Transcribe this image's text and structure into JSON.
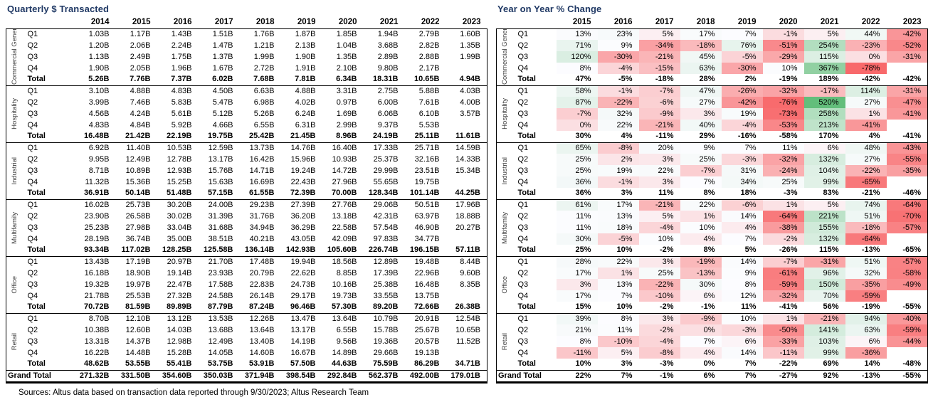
{
  "footer": "Sources: Altus data based on transaction data reported through 9/30/2023; Altus Research Team",
  "colors": {
    "title": "#1F3864",
    "heat_positive": "#63BE7B",
    "heat_negative": "#F8696B",
    "heat_neutral": "#FCFCFF"
  },
  "left_table": {
    "title": "Quarterly $ Transacted",
    "years": [
      "2014",
      "2015",
      "2016",
      "2017",
      "2018",
      "2019",
      "2020",
      "2021",
      "2022",
      "2023"
    ],
    "grand_total_label": "Grand Total",
    "groups": [
      {
        "name": "Commercial General/Misc.",
        "rows": [
          {
            "label": "Q1",
            "values": [
              "1.03B",
              "1.17B",
              "1.43B",
              "1.51B",
              "1.76B",
              "1.87B",
              "1.85B",
              "1.94B",
              "2.79B",
              "1.60B"
            ]
          },
          {
            "label": "Q2",
            "values": [
              "1.20B",
              "2.06B",
              "2.24B",
              "1.47B",
              "1.21B",
              "2.13B",
              "1.04B",
              "3.68B",
              "2.82B",
              "1.35B"
            ]
          },
          {
            "label": "Q3",
            "values": [
              "1.13B",
              "2.49B",
              "1.75B",
              "1.37B",
              "1.99B",
              "1.90B",
              "1.35B",
              "2.89B",
              "2.88B",
              "1.99B"
            ]
          },
          {
            "label": "Q4",
            "values": [
              "1.90B",
              "2.05B",
              "1.96B",
              "1.67B",
              "2.72B",
              "1.91B",
              "2.10B",
              "9.80B",
              "2.17B",
              null
            ]
          },
          {
            "label": "Total",
            "values": [
              "5.26B",
              "7.76B",
              "7.37B",
              "6.02B",
              "7.68B",
              "7.81B",
              "6.34B",
              "18.31B",
              "10.65B",
              "4.94B"
            ]
          }
        ]
      },
      {
        "name": "Hospitality",
        "rows": [
          {
            "label": "Q1",
            "values": [
              "3.10B",
              "4.88B",
              "4.83B",
              "4.50B",
              "6.63B",
              "4.88B",
              "3.31B",
              "2.75B",
              "5.88B",
              "4.03B"
            ]
          },
          {
            "label": "Q2",
            "values": [
              "3.99B",
              "7.46B",
              "5.83B",
              "5.47B",
              "6.98B",
              "4.02B",
              "0.97B",
              "6.00B",
              "7.61B",
              "4.00B"
            ]
          },
          {
            "label": "Q3",
            "values": [
              "4.56B",
              "4.24B",
              "5.61B",
              "5.12B",
              "5.26B",
              "6.24B",
              "1.69B",
              "6.06B",
              "6.10B",
              "3.57B"
            ]
          },
          {
            "label": "Q4",
            "values": [
              "4.83B",
              "4.84B",
              "5.92B",
              "4.66B",
              "6.55B",
              "6.31B",
              "2.99B",
              "9.37B",
              "5.53B",
              null
            ]
          },
          {
            "label": "Total",
            "values": [
              "16.48B",
              "21.42B",
              "22.19B",
              "19.75B",
              "25.42B",
              "21.45B",
              "8.96B",
              "24.19B",
              "25.11B",
              "11.61B"
            ]
          }
        ]
      },
      {
        "name": "Industrial",
        "rows": [
          {
            "label": "Q1",
            "values": [
              "6.92B",
              "11.40B",
              "10.53B",
              "12.59B",
              "13.73B",
              "14.76B",
              "16.40B",
              "17.33B",
              "25.71B",
              "14.59B"
            ]
          },
          {
            "label": "Q2",
            "values": [
              "9.95B",
              "12.49B",
              "12.78B",
              "13.17B",
              "16.42B",
              "15.96B",
              "10.93B",
              "25.37B",
              "32.16B",
              "14.33B"
            ]
          },
          {
            "label": "Q3",
            "values": [
              "8.71B",
              "10.89B",
              "12.93B",
              "15.76B",
              "14.71B",
              "19.24B",
              "14.72B",
              "29.99B",
              "23.51B",
              "15.34B"
            ]
          },
          {
            "label": "Q4",
            "values": [
              "11.32B",
              "15.36B",
              "15.25B",
              "15.63B",
              "16.69B",
              "22.43B",
              "27.96B",
              "55.65B",
              "19.75B",
              null
            ]
          },
          {
            "label": "Total",
            "values": [
              "36.91B",
              "50.14B",
              "51.48B",
              "57.15B",
              "61.55B",
              "72.39B",
              "70.00B",
              "128.34B",
              "101.14B",
              "44.25B"
            ]
          }
        ]
      },
      {
        "name": "Multifamily",
        "rows": [
          {
            "label": "Q1",
            "values": [
              "16.02B",
              "25.73B",
              "30.20B",
              "24.00B",
              "29.23B",
              "27.39B",
              "27.76B",
              "29.06B",
              "50.51B",
              "17.96B"
            ]
          },
          {
            "label": "Q2",
            "values": [
              "23.90B",
              "26.58B",
              "30.02B",
              "31.39B",
              "31.76B",
              "36.20B",
              "13.18B",
              "42.31B",
              "63.97B",
              "18.88B"
            ]
          },
          {
            "label": "Q3",
            "values": [
              "25.23B",
              "27.98B",
              "33.04B",
              "31.68B",
              "34.94B",
              "36.29B",
              "22.58B",
              "57.54B",
              "46.90B",
              "20.27B"
            ]
          },
          {
            "label": "Q4",
            "values": [
              "28.19B",
              "36.74B",
              "35.00B",
              "38.51B",
              "40.21B",
              "43.05B",
              "42.09B",
              "97.83B",
              "34.77B",
              null
            ]
          },
          {
            "label": "Total",
            "values": [
              "93.34B",
              "117.02B",
              "128.25B",
              "125.58B",
              "136.14B",
              "142.93B",
              "105.60B",
              "226.74B",
              "196.15B",
              "57.11B"
            ]
          }
        ]
      },
      {
        "name": "Office",
        "rows": [
          {
            "label": "Q1",
            "values": [
              "13.43B",
              "17.19B",
              "20.97B",
              "21.70B",
              "17.48B",
              "19.94B",
              "18.56B",
              "12.89B",
              "19.48B",
              "8.44B"
            ]
          },
          {
            "label": "Q2",
            "values": [
              "16.18B",
              "18.90B",
              "19.14B",
              "23.93B",
              "20.79B",
              "22.62B",
              "8.85B",
              "17.39B",
              "22.96B",
              "9.60B"
            ]
          },
          {
            "label": "Q3",
            "values": [
              "19.32B",
              "19.97B",
              "22.47B",
              "17.58B",
              "22.83B",
              "24.73B",
              "10.16B",
              "25.38B",
              "16.48B",
              "8.35B"
            ]
          },
          {
            "label": "Q4",
            "values": [
              "21.78B",
              "25.53B",
              "27.32B",
              "24.58B",
              "26.14B",
              "29.17B",
              "19.73B",
              "33.55B",
              "13.75B",
              null
            ]
          },
          {
            "label": "Total",
            "values": [
              "70.72B",
              "81.59B",
              "89.89B",
              "87.79B",
              "87.24B",
              "96.46B",
              "57.30B",
              "89.20B",
              "72.66B",
              "26.38B"
            ]
          }
        ]
      },
      {
        "name": "Retail",
        "rows": [
          {
            "label": "Q1",
            "values": [
              "8.70B",
              "12.10B",
              "13.12B",
              "13.53B",
              "12.26B",
              "13.47B",
              "13.64B",
              "10.79B",
              "20.91B",
              "12.54B"
            ]
          },
          {
            "label": "Q2",
            "values": [
              "10.38B",
              "12.60B",
              "14.03B",
              "13.68B",
              "13.64B",
              "13.17B",
              "6.55B",
              "15.78B",
              "25.67B",
              "10.65B"
            ]
          },
          {
            "label": "Q3",
            "values": [
              "13.31B",
              "14.37B",
              "12.98B",
              "12.49B",
              "13.40B",
              "14.19B",
              "9.56B",
              "19.36B",
              "20.57B",
              "11.52B"
            ]
          },
          {
            "label": "Q4",
            "values": [
              "16.22B",
              "14.48B",
              "15.28B",
              "14.05B",
              "14.60B",
              "16.67B",
              "14.89B",
              "29.66B",
              "19.13B",
              null
            ]
          },
          {
            "label": "Total",
            "values": [
              "48.62B",
              "53.55B",
              "55.41B",
              "53.75B",
              "53.91B",
              "57.50B",
              "44.63B",
              "75.59B",
              "86.29B",
              "34.71B"
            ]
          }
        ]
      }
    ],
    "grand_total": [
      "271.32B",
      "331.50B",
      "354.60B",
      "350.03B",
      "371.94B",
      "398.54B",
      "292.84B",
      "562.37B",
      "492.00B",
      "179.01B"
    ]
  },
  "right_table": {
    "title": "Year on Year % Change",
    "years": [
      "2015",
      "2016",
      "2017",
      "2018",
      "2019",
      "2020",
      "2021",
      "2022",
      "2023"
    ],
    "grand_total_label": "Grand Total",
    "heat_scale": {
      "min": -78,
      "mid": 7,
      "max": 520
    },
    "groups": [
      {
        "name": "Commercial General/Misc.",
        "rows": [
          {
            "label": "Q1",
            "values": [
              13,
              23,
              5,
              17,
              7,
              -1,
              5,
              44,
              -42
            ]
          },
          {
            "label": "Q2",
            "values": [
              71,
              9,
              -34,
              -18,
              76,
              -51,
              254,
              -23,
              -52
            ]
          },
          {
            "label": "Q3",
            "values": [
              120,
              -30,
              -21,
              45,
              -5,
              -29,
              115,
              0,
              -31
            ]
          },
          {
            "label": "Q4",
            "values": [
              8,
              -4,
              -15,
              63,
              -30,
              10,
              367,
              -78,
              null
            ]
          },
          {
            "label": "Total",
            "values": [
              47,
              -5,
              -18,
              28,
              2,
              -19,
              189,
              -42,
              -42
            ]
          }
        ]
      },
      {
        "name": "Hospitality",
        "rows": [
          {
            "label": "Q1",
            "values": [
              58,
              -1,
              -7,
              47,
              -26,
              -32,
              -17,
              114,
              -31
            ]
          },
          {
            "label": "Q2",
            "values": [
              87,
              -22,
              -6,
              27,
              -42,
              -76,
              520,
              27,
              -47
            ]
          },
          {
            "label": "Q3",
            "values": [
              -7,
              32,
              -9,
              3,
              19,
              -73,
              258,
              1,
              -41
            ]
          },
          {
            "label": "Q4",
            "values": [
              0,
              22,
              -21,
              40,
              -4,
              -53,
              213,
              -41,
              null
            ]
          },
          {
            "label": "Total",
            "values": [
              30,
              4,
              -11,
              29,
              -16,
              -58,
              170,
              4,
              -41
            ]
          }
        ]
      },
      {
        "name": "Industrial",
        "rows": [
          {
            "label": "Q1",
            "values": [
              65,
              -8,
              20,
              9,
              7,
              11,
              6,
              48,
              -43
            ]
          },
          {
            "label": "Q2",
            "values": [
              25,
              2,
              3,
              25,
              -3,
              -32,
              132,
              27,
              -55
            ]
          },
          {
            "label": "Q3",
            "values": [
              25,
              19,
              22,
              -7,
              31,
              -24,
              104,
              -22,
              -35
            ]
          },
          {
            "label": "Q4",
            "values": [
              36,
              -1,
              3,
              7,
              34,
              25,
              99,
              -65,
              null
            ]
          },
          {
            "label": "Total",
            "values": [
              36,
              3,
              11,
              8,
              18,
              -3,
              83,
              -21,
              -46
            ]
          }
        ]
      },
      {
        "name": "Multifamily",
        "rows": [
          {
            "label": "Q1",
            "values": [
              61,
              17,
              -21,
              22,
              -6,
              1,
              5,
              74,
              -64
            ]
          },
          {
            "label": "Q2",
            "values": [
              11,
              13,
              5,
              1,
              14,
              -64,
              221,
              51,
              -70
            ]
          },
          {
            "label": "Q3",
            "values": [
              11,
              18,
              -4,
              10,
              4,
              -38,
              155,
              -18,
              -57
            ]
          },
          {
            "label": "Q4",
            "values": [
              30,
              -5,
              10,
              4,
              7,
              -2,
              132,
              -64,
              null
            ]
          },
          {
            "label": "Total",
            "values": [
              25,
              10,
              -2,
              8,
              5,
              -26,
              115,
              -13,
              -65
            ]
          }
        ]
      },
      {
        "name": "Office",
        "rows": [
          {
            "label": "Q1",
            "values": [
              28,
              22,
              3,
              -19,
              14,
              -7,
              -31,
              51,
              -57
            ]
          },
          {
            "label": "Q2",
            "values": [
              17,
              1,
              25,
              -13,
              9,
              -61,
              96,
              32,
              -58
            ]
          },
          {
            "label": "Q3",
            "values": [
              3,
              13,
              -22,
              30,
              8,
              -59,
              150,
              -35,
              -49
            ]
          },
          {
            "label": "Q4",
            "values": [
              17,
              7,
              -10,
              6,
              12,
              -32,
              70,
              -59,
              null
            ]
          },
          {
            "label": "Total",
            "values": [
              15,
              10,
              -2,
              -1,
              11,
              -41,
              56,
              -19,
              -55
            ]
          }
        ]
      },
      {
        "name": "Retail",
        "rows": [
          {
            "label": "Q1",
            "values": [
              39,
              8,
              3,
              -9,
              10,
              1,
              -21,
              94,
              -40
            ]
          },
          {
            "label": "Q2",
            "values": [
              21,
              11,
              -2,
              0,
              -3,
              -50,
              141,
              63,
              -59
            ]
          },
          {
            "label": "Q3",
            "values": [
              8,
              -10,
              -4,
              7,
              6,
              -33,
              103,
              6,
              -44
            ]
          },
          {
            "label": "Q4",
            "values": [
              -11,
              5,
              -8,
              4,
              14,
              -11,
              99,
              -36,
              null
            ]
          },
          {
            "label": "Total",
            "values": [
              10,
              3,
              -3,
              0,
              7,
              -22,
              69,
              14,
              -48
            ]
          }
        ]
      }
    ],
    "grand_total": [
      22,
      7,
      -1,
      6,
      7,
      -27,
      92,
      -13,
      -55
    ]
  }
}
